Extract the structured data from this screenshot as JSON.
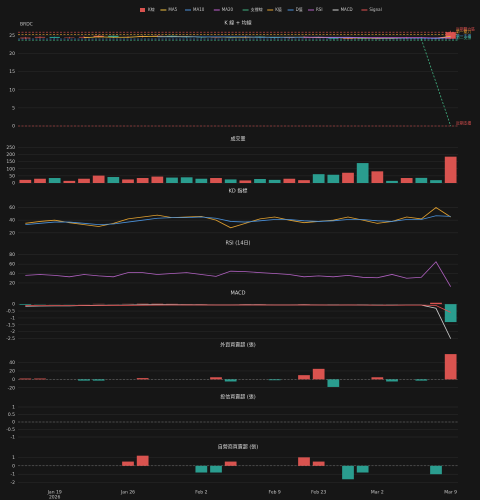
{
  "chart_data": [
    {
      "type": "candlestick",
      "title": "K 線 + 均線",
      "name": "K線",
      "symbol": "BRDC",
      "x_year": "2026",
      "categories": [
        null,
        null,
        "Jan 19",
        null,
        null,
        null,
        null,
        "Jan 26",
        null,
        null,
        null,
        null,
        "Feb 2",
        null,
        null,
        null,
        null,
        "Feb 9",
        null,
        null,
        "Feb 23",
        null,
        null,
        null,
        "Mar 2",
        null,
        null,
        null,
        null,
        "Mar 9"
      ],
      "open": [
        24.2,
        24.4,
        24.6,
        24.3,
        24.4,
        24.6,
        24.9,
        24.5,
        24.6,
        24.8,
        24.9,
        24.6,
        24.5,
        24.4,
        24.5,
        24.4,
        24.7,
        24.4,
        24.3,
        24.4,
        24.6,
        24.4,
        24.1,
        24.3,
        24.1,
        24.3,
        24.2,
        24.4,
        24.3,
        24.1
      ],
      "high": [
        24.6,
        24.8,
        24.7,
        24.6,
        24.8,
        25.1,
        25.0,
        24.8,
        25.0,
        25.1,
        25.0,
        24.8,
        24.7,
        24.7,
        24.7,
        24.9,
        24.8,
        24.6,
        24.6,
        24.8,
        24.7,
        24.5,
        24.5,
        24.5,
        24.5,
        24.5,
        24.6,
        24.6,
        24.5,
        26.3
      ],
      "low": [
        24.0,
        24.2,
        24.2,
        24.1,
        24.2,
        24.4,
        24.3,
        24.3,
        24.4,
        24.6,
        24.4,
        24.3,
        24.2,
        24.2,
        24.2,
        24.2,
        24.2,
        24.1,
        24.1,
        24.2,
        24.2,
        23.8,
        23.9,
        23.8,
        23.9,
        24.0,
        24.0,
        24.1,
        23.8,
        24.0
      ],
      "close": [
        24.4,
        24.6,
        24.3,
        24.4,
        24.6,
        24.9,
        24.5,
        24.6,
        24.8,
        24.9,
        24.6,
        24.5,
        24.4,
        24.5,
        24.4,
        24.7,
        24.4,
        24.3,
        24.4,
        24.6,
        24.4,
        24.1,
        24.3,
        24.1,
        24.3,
        24.2,
        24.4,
        24.3,
        24.1,
        25.9
      ],
      "up_color": "#d9534f",
      "down_color": "#2a9d8f",
      "series": [
        {
          "name": "MA5",
          "color": "#f0c040",
          "values": [
            null,
            null,
            null,
            null,
            24.4,
            24.6,
            24.5,
            24.5,
            24.7,
            24.7,
            24.7,
            24.7,
            24.6,
            24.6,
            24.5,
            24.5,
            24.5,
            24.5,
            24.5,
            24.5,
            24.4,
            24.4,
            24.3,
            24.3,
            24.2,
            24.2,
            24.3,
            24.3,
            24.3,
            24.7
          ]
        },
        {
          "name": "MA10",
          "color": "#4a90d9",
          "values": [
            null,
            null,
            null,
            null,
            null,
            null,
            null,
            null,
            null,
            24.6,
            24.6,
            24.6,
            24.6,
            24.6,
            24.6,
            24.6,
            24.5,
            24.5,
            24.5,
            24.5,
            24.5,
            24.4,
            24.4,
            24.4,
            24.3,
            24.3,
            24.3,
            24.3,
            24.2,
            24.4
          ]
        },
        {
          "name": "MA20",
          "color": "#c060d0",
          "values": [
            null,
            null,
            null,
            null,
            null,
            null,
            null,
            null,
            null,
            null,
            null,
            null,
            null,
            null,
            null,
            null,
            null,
            null,
            null,
            24.5,
            24.5,
            24.5,
            24.5,
            24.4,
            24.4,
            24.4,
            24.4,
            24.4,
            24.3,
            24.4
          ]
        },
        {
          "name": "支撐線",
          "color": "#40b080",
          "dashed": true,
          "values": [
            null,
            null,
            null,
            null,
            null,
            null,
            null,
            null,
            null,
            null,
            null,
            null,
            null,
            null,
            null,
            null,
            null,
            null,
            null,
            null,
            null,
            null,
            null,
            null,
            null,
            null,
            null,
            24.0,
            12.0,
            0.0
          ]
        }
      ],
      "levels": [
        {
          "label": "近期壓力區",
          "value": 25.9,
          "color": "#e05050"
        },
        {
          "label": "第一壓力",
          "value": 25.3,
          "color": "#e0a030"
        },
        {
          "label": "第一支撐",
          "value": 24.0,
          "color": "#4a90d9"
        },
        {
          "label": "第二支撐",
          "value": 23.6,
          "color": "#40b080"
        },
        {
          "label": "近期支撐",
          "value": 0,
          "color": "#e05050"
        }
      ],
      "ylim": [
        0,
        26.5
      ],
      "yticks": [
        0,
        5,
        10,
        15,
        20,
        25
      ],
      "grid": true
    },
    {
      "type": "bar",
      "title": "成交量",
      "color_by": "candle",
      "values": [
        22,
        30,
        35,
        15,
        30,
        52,
        42,
        25,
        35,
        45,
        38,
        40,
        30,
        35,
        25,
        18,
        28,
        22,
        30,
        20,
        62,
        58,
        72,
        140,
        82,
        15,
        35,
        36,
        20,
        185
      ],
      "ylim": [
        0,
        260
      ],
      "yticks": [
        0,
        50,
        100,
        150,
        200,
        250
      ],
      "grid": true
    },
    {
      "type": "line",
      "title": "KD 指標",
      "series": [
        {
          "name": "K值",
          "color": "#e0a030",
          "values": [
            35,
            38,
            40,
            36,
            33,
            30,
            35,
            42,
            45,
            48,
            44,
            45,
            46,
            40,
            28,
            35,
            42,
            45,
            40,
            36,
            38,
            40,
            45,
            40,
            35,
            38,
            45,
            42,
            60,
            45
          ]
        },
        {
          "name": "D值",
          "color": "#4a90d9",
          "values": [
            33,
            35,
            37,
            37,
            35,
            33,
            34,
            37,
            40,
            43,
            44,
            44,
            45,
            43,
            38,
            37,
            39,
            41,
            41,
            39,
            38,
            39,
            41,
            41,
            39,
            38,
            41,
            41,
            47,
            46
          ]
        }
      ],
      "ylim": [
        15,
        75
      ],
      "yticks": [
        20,
        40,
        60
      ],
      "grid": true
    },
    {
      "type": "line",
      "title": "RSI (14日)",
      "series": [
        {
          "name": "RSI",
          "color": "#b060c0",
          "values": [
            36,
            38,
            36,
            33,
            38,
            35,
            33,
            42,
            42,
            38,
            40,
            42,
            38,
            34,
            45,
            44,
            42,
            40,
            38,
            33,
            35,
            33,
            36,
            32,
            31,
            38,
            30,
            32,
            65,
            12
          ]
        }
      ],
      "ylim": [
        5,
        90
      ],
      "yticks": [
        20,
        40,
        60,
        80
      ],
      "grid": true
    },
    {
      "type": "macd",
      "title": "MACD",
      "up_color": "#d9534f",
      "down_color": "#2a9d8f",
      "values": [
        -0.05,
        -0.02,
        -0.01,
        -0.01,
        0.01,
        0.02,
        0.01,
        0.02,
        0.03,
        0.03,
        0.02,
        0.01,
        0.01,
        0,
        0,
        0.01,
        0.01,
        0,
        0,
        0.01,
        0,
        -0.01,
        0,
        -0.01,
        -0.01,
        -0.01,
        0,
        0,
        0.1,
        -1.3
      ],
      "series": [
        {
          "name": "MACD",
          "color": "#cfcfcf",
          "values": [
            -0.15,
            -0.13,
            -0.12,
            -0.12,
            -0.1,
            -0.08,
            -0.08,
            -0.07,
            -0.05,
            -0.04,
            -0.04,
            -0.05,
            -0.05,
            -0.06,
            -0.06,
            -0.05,
            -0.05,
            -0.06,
            -0.06,
            -0.05,
            -0.06,
            -0.07,
            -0.06,
            -0.07,
            -0.08,
            -0.08,
            -0.07,
            -0.07,
            -0.3,
            -2.5
          ]
        },
        {
          "name": "Signal",
          "color": "#e05050",
          "values": [
            -0.1,
            -0.11,
            -0.11,
            -0.11,
            -0.11,
            -0.1,
            -0.09,
            -0.09,
            -0.08,
            -0.07,
            -0.06,
            -0.06,
            -0.06,
            -0.06,
            -0.06,
            -0.06,
            -0.06,
            -0.06,
            -0.06,
            -0.06,
            -0.06,
            -0.06,
            -0.06,
            -0.06,
            -0.07,
            -0.07,
            -0.07,
            -0.07,
            -0.1,
            -0.6
          ]
        }
      ],
      "ylim": [
        -2.6,
        0.3
      ],
      "yticks": [
        -2.5,
        -2,
        -1.5,
        -1,
        -0.5,
        0
      ],
      "grid": true
    },
    {
      "type": "bar",
      "title": "外資買賣超 (張)",
      "up_color": "#d9534f",
      "down_color": "#2a9d8f",
      "values": [
        2,
        2,
        0,
        0,
        -3,
        -3,
        0,
        0,
        3,
        0,
        0,
        0,
        0,
        5,
        -5,
        0,
        0,
        -2,
        0,
        10,
        25,
        -18,
        0,
        0,
        5,
        -5,
        0,
        -3,
        0,
        60
      ],
      "ylim": [
        -30,
        65
      ],
      "yticks": [
        -20,
        0,
        20,
        40
      ],
      "grid": true
    },
    {
      "type": "bar",
      "title": "投信買賣超 (張)",
      "up_color": "#d9534f",
      "down_color": "#2a9d8f",
      "values": [
        0,
        0,
        0,
        0,
        0,
        0,
        0,
        0,
        0,
        0,
        0,
        0,
        0,
        0,
        0,
        0,
        0,
        0,
        0,
        0,
        0,
        0,
        0,
        0,
        0,
        0,
        0,
        0,
        0,
        0
      ],
      "ylim": [
        -1.2,
        1.2
      ],
      "yticks": [
        -1,
        -0.5,
        0,
        0.5,
        1
      ],
      "grid": true
    },
    {
      "type": "bar",
      "title": "自營商買賣超 (張)",
      "up_color": "#d9534f",
      "down_color": "#2a9d8f",
      "values": [
        0,
        0,
        0,
        0,
        0,
        0,
        0,
        0.5,
        1.2,
        0,
        0,
        0,
        -0.8,
        -0.8,
        0.5,
        0,
        0,
        0,
        0,
        1.0,
        0.5,
        0,
        -1.6,
        -0.8,
        0,
        0,
        0,
        0,
        -1.0,
        0
      ],
      "ylim": [
        -2.4,
        1.4
      ],
      "yticks": [
        -2,
        -1,
        0,
        1
      ],
      "grid": true
    }
  ]
}
